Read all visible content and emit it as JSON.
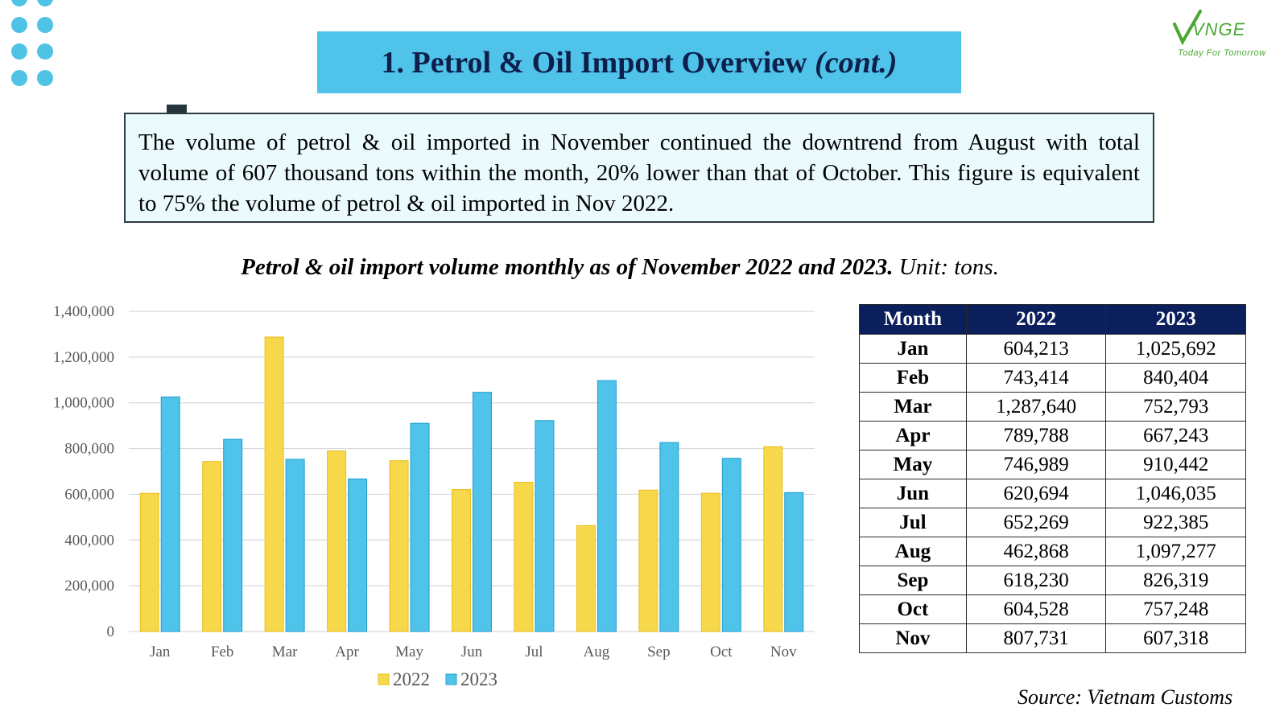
{
  "header": {
    "title_main": "1. Petrol & Oil Import Overview",
    "title_cont": "(cont.)"
  },
  "logo": {
    "text": "VNGE",
    "tagline": "Today For Tomorrow"
  },
  "summary": {
    "text": "The volume of petrol & oil imported in November continued the downtrend from August with total volume of 607 thousand tons within the month, 20% lower than that of October. This figure is equivalent to 75% the volume of petrol & oil imported in Nov 2022."
  },
  "chart_heading": {
    "main": "Petrol & oil import volume monthly as of November 2022 and 2023.",
    "unit": "Unit: tons."
  },
  "colors": {
    "series_2022": "#f7d84a",
    "series_2022_stroke": "#e8bf20",
    "series_2023": "#4fc3ea",
    "series_2023_stroke": "#1f9fd0",
    "accent": "#4fc3ea",
    "table_header": "#0a1f5c"
  },
  "chart_data": {
    "type": "bar",
    "title": "",
    "xlabel": "",
    "ylabel": "",
    "categories": [
      "Jan",
      "Feb",
      "Mar",
      "Apr",
      "May",
      "Jun",
      "Jul",
      "Aug",
      "Sep",
      "Oct",
      "Nov"
    ],
    "series": [
      {
        "name": "2022",
        "values": [
          604213,
          743414,
          1287640,
          789788,
          746989,
          620694,
          652269,
          462868,
          618230,
          604528,
          807731
        ]
      },
      {
        "name": "2023",
        "values": [
          1025692,
          840404,
          752793,
          667243,
          910442,
          1046035,
          922385,
          1097277,
          826319,
          757248,
          607318
        ]
      }
    ],
    "ylim": [
      0,
      1400000
    ],
    "yticks": [
      0,
      200000,
      400000,
      600000,
      800000,
      1000000,
      1200000,
      1400000
    ],
    "ytick_labels": [
      "0",
      "200,000",
      "400,000",
      "600,000",
      "800,000",
      "1,000,000",
      "1,200,000",
      "1,400,000"
    ],
    "grid": true,
    "legend": "bottom"
  },
  "table": {
    "headers": [
      "Month",
      "2022",
      "2023"
    ],
    "rows": [
      [
        "Jan",
        "604,213",
        "1,025,692"
      ],
      [
        "Feb",
        "743,414",
        "840,404"
      ],
      [
        "Mar",
        "1,287,640",
        "752,793"
      ],
      [
        "Apr",
        "789,788",
        "667,243"
      ],
      [
        "May",
        "746,989",
        "910,442"
      ],
      [
        "Jun",
        "620,694",
        "1,046,035"
      ],
      [
        "Jul",
        "652,269",
        "922,385"
      ],
      [
        "Aug",
        "462,868",
        "1,097,277"
      ],
      [
        "Sep",
        "618,230",
        "826,319"
      ],
      [
        "Oct",
        "604,528",
        "757,248"
      ],
      [
        "Nov",
        "807,731",
        "607,318"
      ]
    ]
  },
  "source": "Source: Vietnam Customs"
}
